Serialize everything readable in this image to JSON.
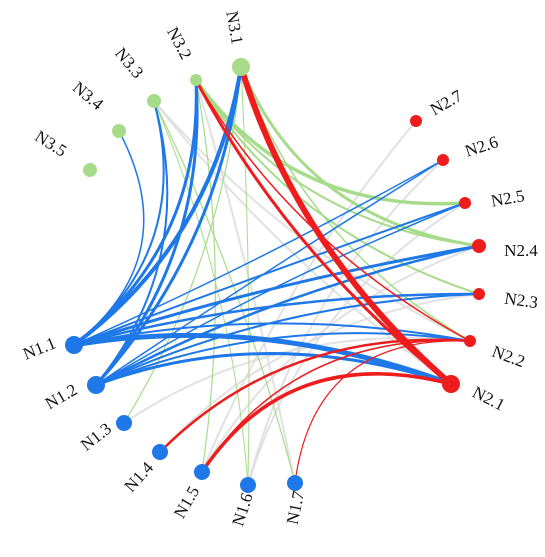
{
  "diagram": {
    "type": "circular-network",
    "colors": {
      "n1": "#1f78e8",
      "n2": "#ee1c1c",
      "n3": "#a6db8a",
      "other": "#dcdcdc"
    },
    "nodes": [
      {
        "id": "N1.1",
        "label": "N1.1",
        "group": "n1",
        "size": 9
      },
      {
        "id": "N1.2",
        "label": "N1.2",
        "group": "n1",
        "size": 9
      },
      {
        "id": "N1.3",
        "label": "N1.3",
        "group": "n1",
        "size": 8
      },
      {
        "id": "N1.4",
        "label": "N1.4",
        "group": "n1",
        "size": 8
      },
      {
        "id": "N1.5",
        "label": "N1.5",
        "group": "n1",
        "size": 8
      },
      {
        "id": "N1.6",
        "label": "N1.6",
        "group": "n1",
        "size": 8
      },
      {
        "id": "N1.7",
        "label": "N1.7",
        "group": "n1",
        "size": 8
      },
      {
        "id": "N2.1",
        "label": "N2.1",
        "group": "n2",
        "size": 9
      },
      {
        "id": "N2.2",
        "label": "N2.2",
        "group": "n2",
        "size": 6
      },
      {
        "id": "N2.3",
        "label": "N2.3",
        "group": "n2",
        "size": 6
      },
      {
        "id": "N2.4",
        "label": "N2.4",
        "group": "n2",
        "size": 7
      },
      {
        "id": "N2.5",
        "label": "N2.5",
        "group": "n2",
        "size": 6
      },
      {
        "id": "N2.6",
        "label": "N2.6",
        "group": "n2",
        "size": 6
      },
      {
        "id": "N2.7",
        "label": "N2.7",
        "group": "n2",
        "size": 6
      },
      {
        "id": "N3.1",
        "label": "N3.1",
        "group": "n3",
        "size": 9
      },
      {
        "id": "N3.2",
        "label": "N3.2",
        "group": "n3",
        "size": 6
      },
      {
        "id": "N3.3",
        "label": "N3.3",
        "group": "n3",
        "size": 7
      },
      {
        "id": "N3.4",
        "label": "N3.4",
        "group": "n3",
        "size": 7
      },
      {
        "id": "N3.5",
        "label": "N3.5",
        "group": "n3",
        "size": 7
      }
    ],
    "links": [
      {
        "source": "N1.1",
        "target": "N3.1",
        "group": "n1",
        "weight": 4
      },
      {
        "source": "N1.1",
        "target": "N3.2",
        "group": "n1",
        "weight": 3
      },
      {
        "source": "N1.1",
        "target": "N3.3",
        "group": "n1",
        "weight": 2
      },
      {
        "source": "N1.1",
        "target": "N3.4",
        "group": "n1",
        "weight": 1.5
      },
      {
        "source": "N1.1",
        "target": "N2.1",
        "group": "n1",
        "weight": 5
      },
      {
        "source": "N1.1",
        "target": "N2.2",
        "group": "n1",
        "weight": 2
      },
      {
        "source": "N1.1",
        "target": "N2.3",
        "group": "n1",
        "weight": 2.5
      },
      {
        "source": "N1.1",
        "target": "N2.4",
        "group": "n1",
        "weight": 3
      },
      {
        "source": "N1.1",
        "target": "N2.5",
        "group": "n1",
        "weight": 2
      },
      {
        "source": "N1.1",
        "target": "N2.6",
        "group": "n1",
        "weight": 1.5
      },
      {
        "source": "N1.2",
        "target": "N3.1",
        "group": "n1",
        "weight": 3
      },
      {
        "source": "N1.2",
        "target": "N3.2",
        "group": "n1",
        "weight": 3
      },
      {
        "source": "N1.2",
        "target": "N3.3",
        "group": "n1",
        "weight": 2
      },
      {
        "source": "N1.2",
        "target": "N2.1",
        "group": "n1",
        "weight": 3
      },
      {
        "source": "N1.2",
        "target": "N2.2",
        "group": "n1",
        "weight": 2
      },
      {
        "source": "N1.2",
        "target": "N2.3",
        "group": "n1",
        "weight": 2
      },
      {
        "source": "N1.2",
        "target": "N2.4",
        "group": "n1",
        "weight": 2.5
      },
      {
        "source": "N1.2",
        "target": "N2.5",
        "group": "n1",
        "weight": 1.5
      },
      {
        "source": "N1.2",
        "target": "N2.6",
        "group": "n1",
        "weight": 1.5
      },
      {
        "source": "N3.1",
        "target": "N2.1",
        "group": "n2",
        "weight": 6
      },
      {
        "source": "N3.2",
        "target": "N2.1",
        "group": "n2",
        "weight": 3
      },
      {
        "source": "N3.2",
        "target": "N2.2",
        "group": "n2",
        "weight": 1.5
      },
      {
        "source": "N1.4",
        "target": "N2.2",
        "group": "n2",
        "weight": 2.5
      },
      {
        "source": "N1.5",
        "target": "N2.1",
        "group": "n2",
        "weight": 3.5
      },
      {
        "source": "N1.5",
        "target": "N2.2",
        "group": "n2",
        "weight": 1.5
      },
      {
        "source": "N1.7",
        "target": "N2.2",
        "group": "n2",
        "weight": 1.2
      },
      {
        "source": "N3.1",
        "target": "N2.4",
        "group": "n3",
        "weight": 3
      },
      {
        "source": "N3.2",
        "target": "N2.5",
        "group": "n3",
        "weight": 3.5
      },
      {
        "source": "N3.2",
        "target": "N2.4",
        "group": "n3",
        "weight": 2
      },
      {
        "source": "N3.2",
        "target": "N2.3",
        "group": "n3",
        "weight": 2
      },
      {
        "source": "N3.1",
        "target": "N2.2",
        "group": "n3",
        "weight": 1.5
      },
      {
        "source": "N3.1",
        "target": "N1.3",
        "group": "n3",
        "weight": 1.2
      },
      {
        "source": "N3.2",
        "target": "N1.5",
        "group": "n3",
        "weight": 1.2
      },
      {
        "source": "N3.3",
        "target": "N1.7",
        "group": "n3",
        "weight": 1.2
      },
      {
        "source": "N3.3",
        "target": "N1.6",
        "group": "n3",
        "weight": 1
      },
      {
        "source": "N3.1",
        "target": "N1.6",
        "group": "n3",
        "weight": 1
      },
      {
        "source": "N3.3",
        "target": "N2.1",
        "group": "other",
        "weight": 2
      },
      {
        "source": "N3.3",
        "target": "N2.2",
        "group": "other",
        "weight": 2
      },
      {
        "source": "N2.7",
        "target": "N1.5",
        "group": "other",
        "weight": 2
      },
      {
        "source": "N2.6",
        "target": "N1.6",
        "group": "other",
        "weight": 2
      },
      {
        "source": "N2.3",
        "target": "N1.4",
        "group": "other",
        "weight": 2
      },
      {
        "source": "N2.4",
        "target": "N1.5",
        "group": "other",
        "weight": 2
      },
      {
        "source": "N2.1",
        "target": "N1.5",
        "group": "other",
        "weight": 2
      },
      {
        "source": "N3.2",
        "target": "N1.7",
        "group": "other",
        "weight": 2
      },
      {
        "source": "N2.5",
        "target": "N1.6",
        "group": "other",
        "weight": 2
      },
      {
        "source": "N2.2",
        "target": "N1.3",
        "group": "other",
        "weight": 2
      }
    ]
  }
}
